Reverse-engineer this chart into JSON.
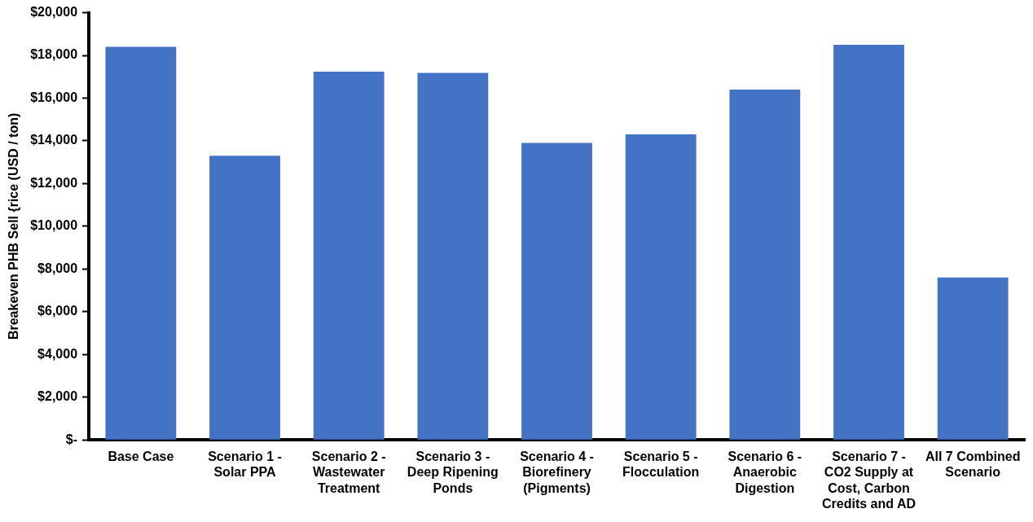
{
  "chart_data": {
    "type": "bar",
    "ylabel": "Breakeven PHB Sell {rice (USD / ton)",
    "categories": [
      "Base Case",
      "Scenario 1 - Solar PPA",
      "Scenario 2 - Wastewater Treatment",
      "Scenario 3 - Deep Ripening Ponds",
      "Scenario 4 - Biorefinery (Pigments)",
      "Scenario 5 - Flocculation",
      "Scenario 6 - Anaerobic Digestion",
      "Scenario 7 - CO2 Supply at Cost, Carbon Credits and AD",
      "All 7 Combined Scenario"
    ],
    "values": [
      18400,
      13300,
      17240,
      17180,
      13900,
      14300,
      16400,
      18500,
      7600
    ],
    "color": "#4472c4",
    "ylim": [
      0,
      20000
    ],
    "yticks": [
      {
        "value": 0,
        "label": "$-"
      },
      {
        "value": 2000,
        "label": "$2,000"
      },
      {
        "value": 4000,
        "label": "$4,000"
      },
      {
        "value": 6000,
        "label": "$6,000"
      },
      {
        "value": 8000,
        "label": "$8,000"
      },
      {
        "value": 10000,
        "label": "$10,000"
      },
      {
        "value": 12000,
        "label": "$12,000"
      },
      {
        "value": 14000,
        "label": "$14,000"
      },
      {
        "value": 16000,
        "label": "$16,000"
      },
      {
        "value": 18000,
        "label": "$18,000"
      },
      {
        "value": 20000,
        "label": "$20,000"
      }
    ],
    "grid": false,
    "legend": false
  }
}
